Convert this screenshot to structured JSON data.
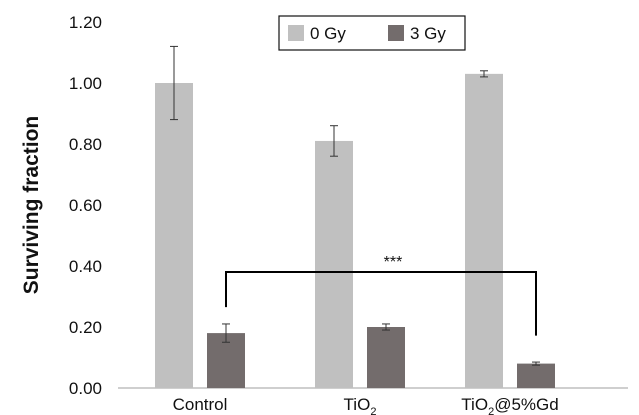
{
  "chart_data": {
    "type": "bar",
    "ylabel": "Surviving fraction",
    "xlabel": "",
    "categories": [
      {
        "main": "Control",
        "sub": "",
        "suffix": ""
      },
      {
        "main": "TiO",
        "sub": "2",
        "suffix": ""
      },
      {
        "main": "TiO",
        "sub": "2",
        "suffix": "@5%Gd"
      }
    ],
    "series": [
      {
        "name": "0 Gy",
        "color": "#c0c0c0",
        "values": [
          1.0,
          0.81,
          1.03
        ],
        "errors": [
          0.12,
          0.05,
          0.01
        ]
      },
      {
        "name": "3 Gy",
        "color": "#736c6c",
        "values": [
          0.18,
          0.2,
          0.08
        ],
        "errors": [
          0.03,
          0.01,
          0.005
        ]
      }
    ],
    "ylim": [
      0,
      1.2
    ],
    "yticks": [
      "0.00",
      "0.20",
      "0.40",
      "0.60",
      "0.80",
      "1.00",
      "1.20"
    ],
    "legend_position": "top-center",
    "grid": false,
    "annotation": {
      "text": "***",
      "from_category": 0,
      "to_category": 2,
      "series": 1
    }
  }
}
